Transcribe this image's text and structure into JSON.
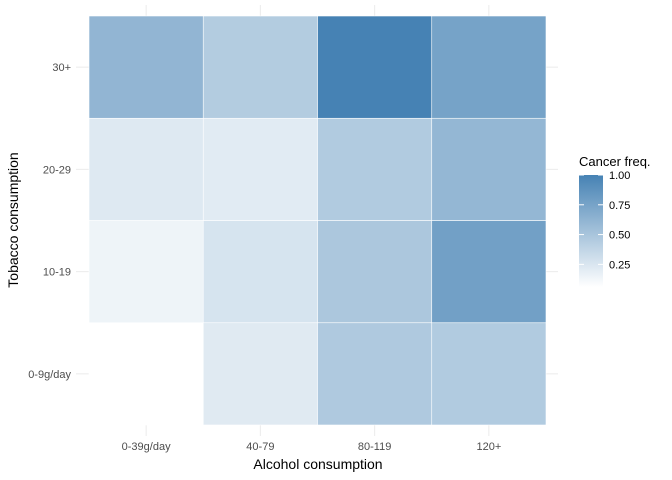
{
  "chart_data": {
    "type": "heatmap",
    "title": "",
    "xlabel": "Alcohol consumption",
    "ylabel": "Tobacco consumption",
    "x_categories": [
      "0-39g/day",
      "40-79",
      "80-119",
      "120+"
    ],
    "y_categories": [
      "0-9g/day",
      "10-19",
      "20-29",
      "30+"
    ],
    "values": [
      [
        0.0,
        0.17,
        0.43,
        0.42
      ],
      [
        0.09,
        0.22,
        0.45,
        0.76
      ],
      [
        0.18,
        0.16,
        0.42,
        0.58
      ],
      [
        0.59,
        0.41,
        1.0,
        0.74
      ]
    ],
    "value_range": [
      0.0,
      1.0
    ],
    "grid": true,
    "legend": {
      "title": "Cancer freq.",
      "position": "right",
      "ticks": [
        0.25,
        0.5,
        0.75,
        1.0
      ],
      "tick_labels": [
        "0.25",
        "0.50",
        "0.75",
        "1.00"
      ],
      "low_color": "#ffffff",
      "high_color": "#4682b4"
    }
  }
}
